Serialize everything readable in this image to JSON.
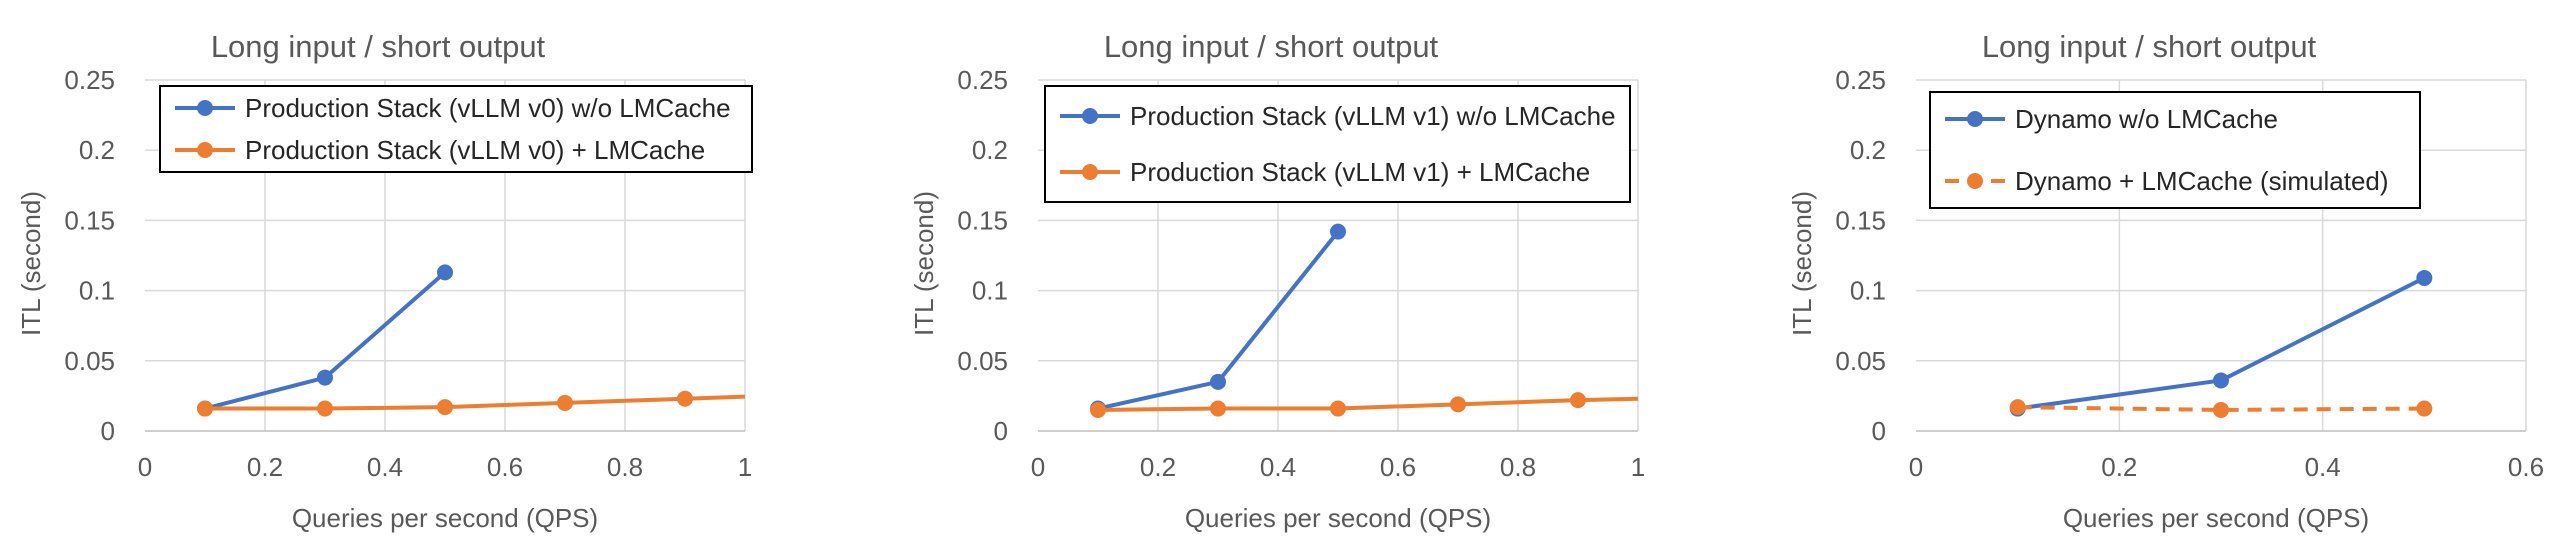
{
  "colors": {
    "blue": "#4472C4",
    "orange": "#ED7D31",
    "grid": "#D9D9D9",
    "axis": "#BFBFBF",
    "text": "#595959",
    "legend_border": "#000000"
  },
  "chart_data": [
    {
      "type": "line",
      "title": "Long input / short output",
      "xlabel": "Queries per second (QPS)",
      "ylabel": "ITL (second)",
      "xlim": [
        0,
        1
      ],
      "ylim": [
        0,
        0.25
      ],
      "xticks": [
        0,
        0.2,
        0.4,
        0.6,
        0.8,
        1
      ],
      "yticks": [
        0,
        0.05,
        0.1,
        0.15,
        0.2,
        0.25
      ],
      "x_tick_labels": [
        "0",
        "0.2",
        "0.4",
        "0.6",
        "0.8",
        "1"
      ],
      "y_tick_labels": [
        "0",
        "0.05",
        "0.1",
        "0.15",
        "0.2",
        "0.25"
      ],
      "grid": true,
      "legend_position": "top-left",
      "series": [
        {
          "name": "Production Stack (vLLM v0) w/o LMCache",
          "color": "blue",
          "dashed": false,
          "x": [
            0.1,
            0.3,
            0.5
          ],
          "y": [
            0.016,
            0.038,
            0.113
          ]
        },
        {
          "name": "Production Stack (vLLM v0) + LMCache",
          "color": "orange",
          "dashed": false,
          "x": [
            0.1,
            0.3,
            0.5,
            0.7,
            0.9,
            1.1
          ],
          "y": [
            0.016,
            0.016,
            0.017,
            0.02,
            0.023,
            0.026
          ]
        }
      ]
    },
    {
      "type": "line",
      "title": "Long input / short output",
      "xlabel": "Queries per second (QPS)",
      "ylabel": "ITL (second)",
      "xlim": [
        0,
        1
      ],
      "ylim": [
        0,
        0.25
      ],
      "xticks": [
        0,
        0.2,
        0.4,
        0.6,
        0.8,
        1
      ],
      "yticks": [
        0,
        0.05,
        0.1,
        0.15,
        0.2,
        0.25
      ],
      "x_tick_labels": [
        "0",
        "0.2",
        "0.4",
        "0.6",
        "0.8",
        "1"
      ],
      "y_tick_labels": [
        "0",
        "0.05",
        "0.1",
        "0.15",
        "0.2",
        "0.25"
      ],
      "grid": true,
      "legend_position": "top-left",
      "series": [
        {
          "name": "Production Stack (vLLM v1) w/o LMCache",
          "color": "blue",
          "dashed": false,
          "x": [
            0.1,
            0.3,
            0.5
          ],
          "y": [
            0.016,
            0.035,
            0.142
          ]
        },
        {
          "name": "Production Stack (vLLM v1) + LMCache",
          "color": "orange",
          "dashed": false,
          "x": [
            0.1,
            0.3,
            0.5,
            0.7,
            0.9,
            1.1
          ],
          "y": [
            0.015,
            0.016,
            0.016,
            0.019,
            0.022,
            0.024
          ]
        }
      ]
    },
    {
      "type": "line",
      "title": "Long input / short output",
      "xlabel": "Queries per second (QPS)",
      "ylabel": "ITL (second)",
      "xlim": [
        0,
        0.6
      ],
      "ylim": [
        0,
        0.25
      ],
      "xticks": [
        0,
        0.2,
        0.4,
        0.6
      ],
      "yticks": [
        0,
        0.05,
        0.1,
        0.15,
        0.2,
        0.25
      ],
      "x_tick_labels": [
        "0",
        "0.2",
        "0.4",
        "0.6"
      ],
      "y_tick_labels": [
        "0",
        "0.05",
        "0.1",
        "0.15",
        "0.2",
        "0.25"
      ],
      "grid": true,
      "legend_position": "top-left",
      "series": [
        {
          "name": "Dynamo w/o LMCache",
          "color": "blue",
          "dashed": false,
          "x": [
            0.1,
            0.3,
            0.5
          ],
          "y": [
            0.016,
            0.036,
            0.109
          ]
        },
        {
          "name": "Dynamo + LMCache (simulated)",
          "color": "orange",
          "dashed": true,
          "x": [
            0.1,
            0.3,
            0.5
          ],
          "y": [
            0.017,
            0.015,
            0.016
          ]
        }
      ]
    }
  ]
}
